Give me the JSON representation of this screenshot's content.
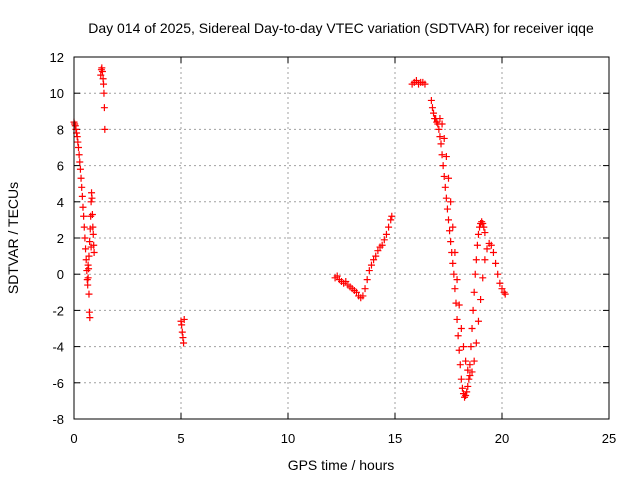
{
  "chart_data": {
    "type": "scatter",
    "title": "Day 014 of 2025, Sidereal Day-to-day VTEC variation (SDTVAR) for receiver iqqe",
    "xlabel": "GPS time / hours",
    "ylabel": "SDTVAR / TECUs",
    "xlim": [
      0,
      25
    ],
    "ylim": [
      -8,
      12
    ],
    "xticks": [
      0,
      5,
      10,
      15,
      20,
      25
    ],
    "yticks": [
      -8,
      -6,
      -4,
      -2,
      0,
      2,
      4,
      6,
      8,
      10,
      12
    ],
    "grid": true,
    "marker": "+",
    "color": "#ff0000",
    "series": [
      {
        "name": "SDTVAR",
        "points": [
          [
            0.0,
            8.4
          ],
          [
            0.03,
            8.3
          ],
          [
            0.06,
            8.2
          ],
          [
            0.09,
            8.0
          ],
          [
            0.12,
            7.8
          ],
          [
            0.15,
            7.6
          ],
          [
            0.18,
            7.3
          ],
          [
            0.21,
            7.0
          ],
          [
            0.24,
            6.6
          ],
          [
            0.27,
            6.2
          ],
          [
            0.3,
            5.8
          ],
          [
            0.33,
            5.3
          ],
          [
            0.36,
            4.8
          ],
          [
            0.39,
            4.3
          ],
          [
            0.42,
            3.7
          ],
          [
            0.45,
            3.2
          ],
          [
            0.48,
            2.6
          ],
          [
            0.51,
            2.0
          ],
          [
            0.54,
            1.4
          ],
          [
            0.57,
            0.8
          ],
          [
            0.6,
            0.2
          ],
          [
            0.62,
            -0.3
          ],
          [
            0.64,
            -0.6
          ],
          [
            0.66,
            -0.2
          ],
          [
            0.68,
            0.3
          ],
          [
            0.7,
            -1.1
          ],
          [
            0.72,
            -2.1
          ],
          [
            0.74,
            -2.4
          ],
          [
            0.66,
            0.5
          ],
          [
            0.7,
            1.0
          ],
          [
            0.73,
            1.8
          ],
          [
            0.76,
            2.5
          ],
          [
            0.78,
            3.2
          ],
          [
            0.8,
            4.0
          ],
          [
            0.82,
            4.5
          ],
          [
            0.84,
            4.2
          ],
          [
            0.86,
            3.3
          ],
          [
            0.88,
            2.6
          ],
          [
            0.9,
            2.2
          ],
          [
            0.92,
            1.6
          ],
          [
            0.94,
            1.2
          ],
          [
            0.8,
            1.5
          ],
          [
            1.25,
            11.0
          ],
          [
            1.28,
            11.3
          ],
          [
            1.3,
            11.4
          ],
          [
            1.33,
            11.2
          ],
          [
            1.36,
            10.8
          ],
          [
            1.38,
            10.5
          ],
          [
            1.4,
            10.0
          ],
          [
            1.42,
            9.2
          ],
          [
            1.44,
            8.0
          ],
          [
            5.0,
            -2.6
          ],
          [
            5.03,
            -2.8
          ],
          [
            5.06,
            -3.2
          ],
          [
            5.09,
            -3.5
          ],
          [
            5.12,
            -3.8
          ],
          [
            5.15,
            -2.5
          ],
          [
            12.2,
            -0.2
          ],
          [
            12.3,
            -0.1
          ],
          [
            12.4,
            -0.3
          ],
          [
            12.5,
            -0.4
          ],
          [
            12.6,
            -0.5
          ],
          [
            12.7,
            -0.4
          ],
          [
            12.8,
            -0.6
          ],
          [
            12.9,
            -0.7
          ],
          [
            13.0,
            -0.8
          ],
          [
            13.1,
            -0.9
          ],
          [
            13.2,
            -1.0
          ],
          [
            13.3,
            -1.2
          ],
          [
            13.4,
            -1.3
          ],
          [
            13.5,
            -1.2
          ],
          [
            13.6,
            -0.8
          ],
          [
            13.7,
            -0.3
          ],
          [
            13.8,
            0.2
          ],
          [
            13.9,
            0.5
          ],
          [
            14.0,
            0.8
          ],
          [
            14.1,
            1.0
          ],
          [
            14.2,
            1.3
          ],
          [
            14.3,
            1.5
          ],
          [
            14.4,
            1.6
          ],
          [
            14.5,
            1.9
          ],
          [
            14.6,
            2.2
          ],
          [
            14.7,
            2.6
          ],
          [
            14.8,
            3.0
          ],
          [
            14.85,
            3.2
          ],
          [
            15.8,
            10.5
          ],
          [
            15.9,
            10.6
          ],
          [
            16.0,
            10.7
          ],
          [
            16.1,
            10.5
          ],
          [
            16.2,
            10.6
          ],
          [
            16.3,
            10.6
          ],
          [
            16.4,
            10.5
          ],
          [
            16.7,
            9.6
          ],
          [
            16.75,
            9.2
          ],
          [
            16.8,
            8.9
          ],
          [
            16.85,
            8.6
          ],
          [
            16.9,
            8.6
          ],
          [
            16.95,
            8.4
          ],
          [
            17.0,
            8.3
          ],
          [
            17.05,
            8.0
          ],
          [
            17.1,
            7.6
          ],
          [
            17.15,
            7.2
          ],
          [
            17.2,
            6.6
          ],
          [
            17.25,
            6.0
          ],
          [
            17.3,
            5.4
          ],
          [
            17.35,
            4.8
          ],
          [
            17.4,
            4.2
          ],
          [
            17.45,
            3.6
          ],
          [
            17.5,
            3.0
          ],
          [
            17.55,
            2.4
          ],
          [
            17.6,
            1.8
          ],
          [
            17.65,
            1.2
          ],
          [
            17.7,
            0.6
          ],
          [
            17.75,
            0.0
          ],
          [
            17.8,
            -0.8
          ],
          [
            17.85,
            -1.6
          ],
          [
            17.9,
            -2.5
          ],
          [
            17.95,
            -3.4
          ],
          [
            18.0,
            -4.2
          ],
          [
            18.05,
            -5.0
          ],
          [
            18.1,
            -5.8
          ],
          [
            18.15,
            -6.3
          ],
          [
            18.2,
            -6.6
          ],
          [
            18.25,
            -6.8
          ],
          [
            18.3,
            -6.7
          ],
          [
            18.35,
            -6.5
          ],
          [
            18.4,
            -6.2
          ],
          [
            18.45,
            -5.8
          ],
          [
            18.5,
            -5.0
          ],
          [
            18.55,
            -4.0
          ],
          [
            18.6,
            -3.0
          ],
          [
            18.65,
            -2.0
          ],
          [
            18.7,
            -1.0
          ],
          [
            18.75,
            0.0
          ],
          [
            18.8,
            0.8
          ],
          [
            18.85,
            1.6
          ],
          [
            18.9,
            2.2
          ],
          [
            18.95,
            2.6
          ],
          [
            19.0,
            2.8
          ],
          [
            19.05,
            2.9
          ],
          [
            19.1,
            2.8
          ],
          [
            19.15,
            2.6
          ],
          [
            19.2,
            2.3
          ],
          [
            17.1,
            8.6
          ],
          [
            17.2,
            8.3
          ],
          [
            17.3,
            7.5
          ],
          [
            17.4,
            6.5
          ],
          [
            17.5,
            5.3
          ],
          [
            17.6,
            4.0
          ],
          [
            17.7,
            2.6
          ],
          [
            17.8,
            1.2
          ],
          [
            17.9,
            -0.3
          ],
          [
            18.0,
            -1.7
          ],
          [
            18.1,
            -3.0
          ],
          [
            18.2,
            -4.0
          ],
          [
            18.3,
            -4.8
          ],
          [
            18.4,
            -5.3
          ],
          [
            18.5,
            -5.6
          ],
          [
            18.6,
            -5.4
          ],
          [
            18.7,
            -4.8
          ],
          [
            18.8,
            -3.8
          ],
          [
            18.9,
            -2.6
          ],
          [
            19.0,
            -1.4
          ],
          [
            19.1,
            -0.2
          ],
          [
            19.2,
            0.8
          ],
          [
            19.3,
            1.4
          ],
          [
            19.4,
            1.7
          ],
          [
            19.5,
            1.6
          ],
          [
            19.6,
            1.2
          ],
          [
            19.7,
            0.6
          ],
          [
            19.8,
            0.0
          ],
          [
            19.9,
            -0.5
          ],
          [
            20.0,
            -0.8
          ],
          [
            20.1,
            -1.0
          ],
          [
            20.15,
            -1.1
          ]
        ]
      }
    ]
  }
}
